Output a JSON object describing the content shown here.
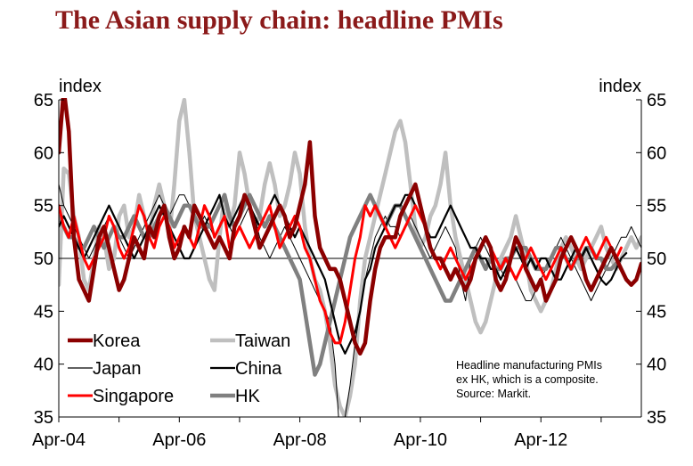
{
  "title": "The Asian supply chain: headline PMIs",
  "chart_data": {
    "type": "line",
    "title": "The Asian supply chain: headline PMIs",
    "ylabel_left": "index",
    "ylabel_right": "index",
    "ylim": [
      35,
      65
    ],
    "yticks": [
      35,
      40,
      45,
      50,
      55,
      60,
      65
    ],
    "ytick_labels": [
      "35",
      "40",
      "45",
      "50",
      "55",
      "60",
      "65"
    ],
    "xlim": [
      "2004-04",
      "2013-12"
    ],
    "xticks": [
      "Apr-04",
      "Apr-06",
      "Apr-08",
      "Apr-10",
      "Apr-12"
    ],
    "reference_line": 50,
    "legend_placement": "lower-left",
    "note": [
      "Headline manufacturing PMIs",
      "ex HK, which is a composite.",
      "Source: Markit."
    ],
    "series": [
      {
        "name": "Korea",
        "color": "#8b0000",
        "width": 4.5,
        "start": "2004-04",
        "values": [
          60,
          66,
          62,
          52,
          48,
          47,
          46,
          49,
          52,
          53,
          51,
          49,
          47,
          48,
          50,
          52,
          51,
          50,
          53,
          52,
          54,
          55,
          52,
          50,
          51,
          53,
          52,
          55,
          54,
          53,
          52,
          51,
          52,
          51,
          50,
          53,
          54,
          56,
          55,
          53,
          51,
          52,
          53,
          54,
          55,
          54,
          52,
          53,
          55,
          57,
          61,
          54,
          51,
          50,
          49,
          49,
          48,
          46,
          44,
          42,
          41,
          42,
          46,
          49,
          51,
          52,
          52,
          52,
          54,
          55,
          56,
          57,
          55,
          53,
          51,
          50,
          50,
          49,
          48,
          49,
          48,
          47,
          48,
          50,
          51,
          52,
          51,
          48,
          47,
          48,
          50,
          52,
          51,
          49,
          48,
          47,
          48,
          46,
          47,
          48,
          50,
          51,
          52,
          51,
          50,
          48,
          47,
          48,
          49,
          50,
          51,
          50,
          49,
          48,
          47.5,
          48,
          49.5
        ]
      },
      {
        "name": "Taiwan",
        "color": "#bfbfbf",
        "width": 4.5,
        "start": "2004-04",
        "values": [
          47.5,
          58.5,
          58,
          54,
          52,
          48,
          47,
          50,
          53,
          52,
          49,
          50,
          54,
          55,
          52,
          53,
          56,
          54,
          52,
          55,
          57,
          55,
          52,
          57,
          63,
          65,
          60,
          54,
          52,
          50,
          48,
          47,
          52,
          56,
          53,
          55,
          60,
          58,
          55,
          53,
          54,
          57,
          59,
          57,
          54,
          55,
          57,
          60,
          58,
          53,
          50,
          48,
          47,
          45,
          42,
          38,
          36,
          35,
          37,
          40,
          46,
          50,
          52,
          54,
          56,
          58,
          60,
          62,
          63,
          61,
          57,
          53,
          51,
          52,
          54,
          55,
          57,
          60,
          55,
          52,
          50,
          48,
          46,
          44,
          43,
          44,
          46,
          48,
          50,
          51,
          52,
          54,
          52,
          50,
          47,
          46,
          45,
          46,
          47,
          49,
          51,
          52,
          51,
          50,
          49,
          50,
          51,
          52,
          53,
          51,
          50,
          49,
          50,
          51,
          52,
          51,
          52
        ]
      },
      {
        "name": "Japan",
        "color": "#000000",
        "width": 1,
        "start": "2004-04",
        "values": [
          57,
          55,
          54,
          53,
          52,
          51,
          50,
          51,
          52,
          53,
          54,
          53,
          52,
          51,
          50,
          51,
          52,
          53,
          54,
          55,
          56,
          55,
          54,
          55,
          56,
          56,
          55,
          54,
          53,
          54,
          53,
          52,
          53,
          54,
          53,
          52,
          53,
          54,
          55,
          54,
          52,
          51,
          50,
          51,
          52,
          53,
          52,
          51,
          50,
          49,
          48,
          47,
          46,
          45,
          44,
          40,
          33,
          35,
          38,
          42,
          45,
          48,
          50,
          52,
          53,
          54,
          53,
          53,
          52,
          53,
          54,
          53,
          52,
          51,
          50,
          51,
          52,
          53,
          52,
          51,
          48,
          46,
          50,
          51,
          52,
          51,
          50,
          50,
          49,
          48,
          49,
          48,
          47,
          46,
          46,
          47,
          48,
          49,
          50,
          51,
          52,
          51,
          50,
          49,
          48,
          47,
          46,
          47,
          48,
          49,
          50,
          51,
          52,
          52,
          53,
          52,
          51
        ]
      },
      {
        "name": "China",
        "color": "#000000",
        "width": 2.2,
        "start": "2004-04",
        "values": [
          53,
          54,
          53,
          52,
          51,
          50,
          51,
          52,
          53,
          54,
          55,
          54,
          53,
          52,
          51,
          50,
          51,
          52,
          53,
          54,
          55,
          54,
          53,
          52,
          51,
          50,
          50,
          51,
          52,
          53,
          54,
          55,
          56,
          54,
          53,
          54,
          55,
          56,
          55,
          54,
          53,
          54,
          55,
          56,
          55,
          54,
          53,
          52,
          53,
          52,
          51,
          50,
          49,
          48,
          46,
          44,
          42,
          41,
          42,
          43,
          45,
          48,
          49,
          51,
          52,
          53,
          54,
          55,
          55,
          56,
          56,
          55,
          54,
          53,
          52,
          52,
          53,
          54,
          55,
          54,
          53,
          52,
          51,
          51,
          50,
          50,
          49,
          49,
          48,
          49,
          50,
          51,
          50,
          49,
          50,
          49,
          50,
          50,
          49,
          48,
          48,
          49,
          50,
          51,
          50,
          51,
          50,
          49,
          48,
          47.5,
          48,
          49,
          50,
          50.5
        ]
      },
      {
        "name": "Singapore",
        "color": "#ff0000",
        "width": 3,
        "start": "2004-04",
        "values": [
          55,
          53,
          52,
          54,
          52,
          50,
          49,
          50,
          51,
          52,
          54,
          53,
          51,
          50,
          51,
          53,
          55,
          54,
          52,
          51,
          53,
          54,
          53,
          51,
          52,
          53,
          52,
          51,
          53,
          55,
          54,
          52,
          53,
          54,
          51,
          52,
          53,
          52,
          51,
          52,
          53,
          54,
          55,
          53,
          51,
          52,
          53,
          54,
          53,
          51,
          50,
          48,
          46,
          45,
          43,
          42,
          42,
          44,
          47,
          50,
          52,
          55,
          54,
          55,
          54,
          53,
          52,
          51,
          52,
          53,
          54,
          55,
          54,
          53,
          51,
          50,
          49,
          50,
          51,
          50,
          49,
          48,
          49,
          50,
          51,
          52,
          51,
          50,
          49,
          50,
          49,
          48,
          49,
          50,
          51,
          50,
          49,
          48,
          49,
          50,
          51,
          50,
          49,
          50,
          51,
          52,
          51,
          50,
          51,
          52,
          51,
          50,
          51
        ]
      },
      {
        "name": "HK",
        "color": "#808080",
        "width": 4.5,
        "start": "2004-04",
        "values": [
          54,
          53,
          52,
          52,
          51,
          51,
          52,
          53,
          52,
          51,
          52,
          53,
          52,
          52,
          53,
          54,
          53,
          52,
          52,
          53,
          54,
          55,
          54,
          53,
          54,
          55,
          55,
          54,
          53,
          53,
          53,
          54,
          55,
          56,
          54,
          53,
          54,
          55,
          56,
          55,
          54,
          53,
          54,
          53,
          52,
          51,
          50,
          49,
          48,
          45,
          42,
          39,
          40,
          42,
          44,
          46,
          48,
          50,
          52,
          53,
          54,
          55,
          56,
          55,
          54,
          53,
          54,
          55,
          55,
          54,
          53,
          52,
          51,
          50,
          49,
          48,
          47,
          46,
          46,
          47,
          48,
          49,
          50,
          51,
          50,
          49,
          50,
          49,
          49,
          50,
          50,
          51,
          51,
          51,
          50,
          49,
          49,
          49,
          50,
          51,
          51,
          50,
          49,
          50,
          50,
          51,
          51,
          50,
          50,
          49,
          49,
          49.5
        ]
      }
    ]
  }
}
